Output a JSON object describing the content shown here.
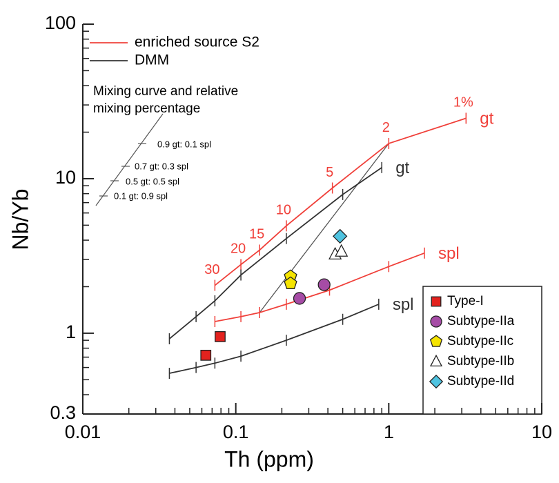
{
  "chart_data": {
    "type": "scatter",
    "xscale": "log",
    "yscale": "log",
    "xlabel": "Th (ppm)",
    "ylabel": "Nb/Yb",
    "xlim": [
      0.01,
      10
    ],
    "ylim": [
      0.3,
      100
    ],
    "xticks": [
      0.01,
      0.1,
      1,
      10
    ],
    "yticks": [
      0.3,
      1,
      10,
      100
    ],
    "xminor": [
      0.02,
      0.03,
      0.04,
      0.05,
      0.06,
      0.07,
      0.08,
      0.09,
      0.2,
      0.3,
      0.4,
      0.5,
      0.6,
      0.7,
      0.8,
      0.9,
      2,
      3,
      4,
      5,
      6,
      7,
      8,
      9
    ],
    "yminor": [
      0.4,
      0.5,
      0.6,
      0.7,
      0.8,
      0.9,
      2,
      3,
      4,
      5,
      6,
      7,
      8,
      9,
      20,
      30,
      40,
      50,
      60,
      70,
      80,
      90
    ],
    "line_groups": [
      {
        "name": "enriched source S2",
        "color": "#f0403a",
        "curves": [
          {
            "label": "gt",
            "x": [
              0.073,
              0.108,
              0.143,
              0.214,
              0.428,
              1.0,
              3.2
            ],
            "y": [
              2.04,
              2.78,
              3.45,
              4.95,
              8.7,
              16.9,
              24.6
            ],
            "point_labels": [
              "30",
              "20",
              "15",
              "10",
              "5",
              "2",
              "1%"
            ]
          },
          {
            "label": "spl",
            "x": [
              0.073,
              0.108,
              0.143,
              0.214,
              0.41,
              1.0,
              1.71
            ],
            "y": [
              1.19,
              1.28,
              1.36,
              1.54,
              1.9,
              2.7,
              3.3
            ]
          }
        ]
      },
      {
        "name": "DMM",
        "color": "#333333",
        "curves": [
          {
            "label": "gt",
            "x": [
              0.0368,
              0.055,
              0.073,
              0.108,
              0.214,
              0.5,
              0.9
            ],
            "y": [
              0.92,
              1.28,
              1.62,
              2.38,
              4.1,
              7.9,
              11.8
            ]
          },
          {
            "label": "spl",
            "x": [
              0.0368,
              0.055,
              0.073,
              0.108,
              0.214,
              0.5,
              0.86
            ],
            "y": [
              0.55,
              0.6,
              0.64,
              0.71,
              0.9,
              1.23,
              1.54
            ]
          }
        ]
      }
    ],
    "mixing_line": {
      "color": "#555555",
      "x": [
        0.143,
        1.0
      ],
      "y": [
        1.36,
        16.9
      ]
    },
    "mixing_note": [
      "Mixing curve and relative",
      "mixing percentage"
    ],
    "mixing_labels": [
      "0.9 gt: 0.1 spl",
      "0.7 gt: 0.3 spl",
      "0.5 gt: 0.5 spl",
      "0.1 gt: 0.9 spl"
    ],
    "series": [
      {
        "name": "Type-I",
        "color": "#e3221e",
        "marker": "square",
        "x": [
          0.0637,
          0.079
        ],
        "y": [
          0.72,
          0.95
        ]
      },
      {
        "name": "Subtype-IIa",
        "color": "#a64ca6",
        "marker": "circle",
        "x": [
          0.261,
          0.378
        ],
        "y": [
          1.68,
          2.06
        ]
      },
      {
        "name": "Subtype-IIc",
        "color": "#f5e400",
        "marker": "pentagon",
        "x": [
          0.228,
          0.228
        ],
        "y": [
          2.33,
          2.1
        ]
      },
      {
        "name": "Subtype-IIb",
        "color": "#ffffff",
        "marker": "triangle",
        "x": [
          0.446,
          0.49
        ],
        "y": [
          3.24,
          3.38
        ]
      },
      {
        "name": "Subtype-IId",
        "color": "#4fc3e0",
        "marker": "diamond",
        "x": [
          0.48
        ],
        "y": [
          4.24
        ]
      }
    ]
  }
}
